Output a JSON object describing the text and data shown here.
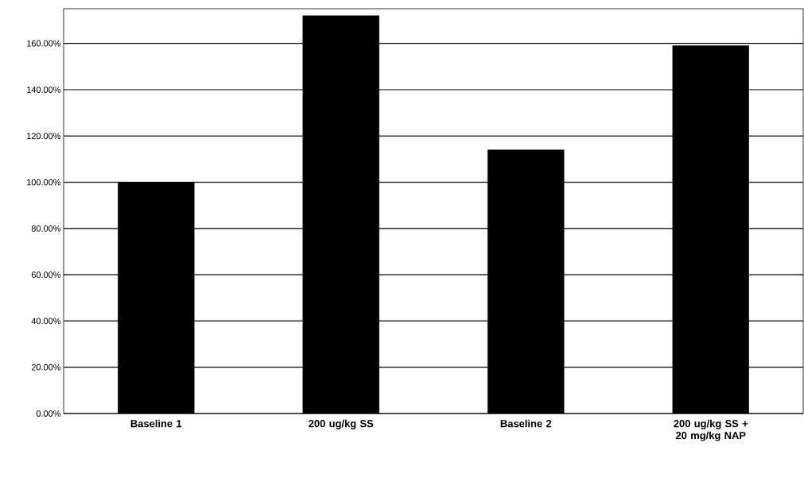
{
  "chart_data": {
    "type": "bar",
    "categories": [
      "Baseline 1",
      "200 ug/kg SS",
      "Baseline 2",
      "200 ug/kg SS + 20 mg/kg NAP"
    ],
    "values": [
      100,
      172,
      114,
      159
    ],
    "color": "#000000",
    "ylim": [
      0,
      175
    ],
    "yticks": [
      {
        "value": 0,
        "label": "0.00%"
      },
      {
        "value": 20,
        "label": "20.00%"
      },
      {
        "value": 40,
        "label": "40.00%"
      },
      {
        "value": 60,
        "label": "60.00%"
      },
      {
        "value": 80,
        "label": "80.00%"
      },
      {
        "value": 100,
        "label": "100.00%"
      },
      {
        "value": 120,
        "label": "120.00%"
      },
      {
        "value": 140,
        "label": "140.00%"
      },
      {
        "value": 160,
        "label": "160.00%"
      }
    ],
    "grid": "y"
  }
}
